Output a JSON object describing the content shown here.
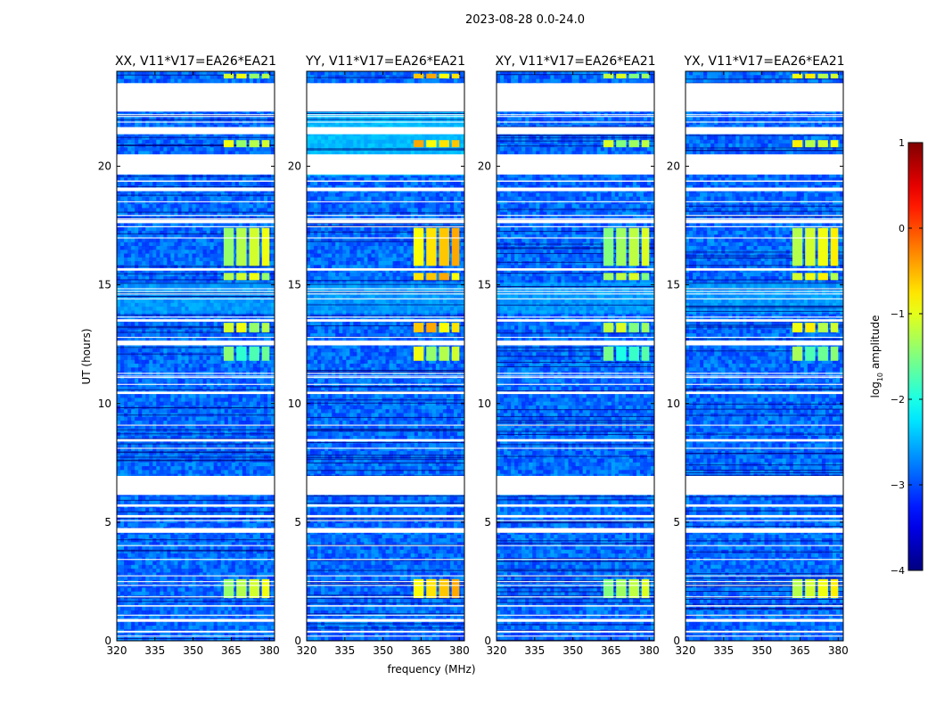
{
  "figure": {
    "suptitle": "2023-08-28 0.0-24.0",
    "ylabel": "UT (hours)",
    "xlabel": "frequency (MHz)"
  },
  "chart_data": {
    "type": "heatmap",
    "title": "2023-08-28 0.0-24.0",
    "xlabel": "frequency (MHz)",
    "ylabel": "UT (hours)",
    "xlim": [
      320,
      382
    ],
    "ylim": [
      0,
      24
    ],
    "x_ticks": [
      320,
      335,
      350,
      365,
      380
    ],
    "y_ticks": [
      0,
      5,
      10,
      15,
      20
    ],
    "panels": [
      {
        "title": "XX, V11*V17=EA26*EA21",
        "pol": "XX"
      },
      {
        "title": "YY, V11*V17=EA26*EA21",
        "pol": "YY"
      },
      {
        "title": "XY, V11*V17=EA26*EA21",
        "pol": "XY"
      },
      {
        "title": "YX, V11*V17=EA26*EA21",
        "pol": "YX"
      }
    ],
    "flagged_ut_ranges": [
      [
        0.8,
        0.92
      ],
      [
        0.35,
        0.42
      ],
      [
        1.45,
        1.5
      ],
      [
        4.55,
        4.75
      ],
      [
        5.2,
        5.3
      ],
      [
        5.65,
        5.75
      ],
      [
        6.15,
        6.95
      ],
      [
        8.4,
        8.5
      ],
      [
        10.4,
        10.5
      ],
      [
        12.45,
        12.65
      ],
      [
        13.45,
        13.55
      ],
      [
        15.6,
        15.7
      ],
      [
        17.6,
        17.75
      ],
      [
        18.95,
        19.1
      ],
      [
        19.65,
        20.5
      ],
      [
        21.35,
        21.65
      ],
      [
        22.3,
        23.5
      ]
    ],
    "rfi_frequency_bands_mhz": [
      [
        362,
        366
      ],
      [
        367,
        371
      ],
      [
        372,
        376
      ],
      [
        377,
        380
      ]
    ],
    "rfi_ut_ranges": [
      [
        1.8,
        2.6
      ],
      [
        11.8,
        12.4
      ],
      [
        13.0,
        13.4
      ],
      [
        15.2,
        15.5
      ],
      [
        15.8,
        17.4
      ],
      [
        20.8,
        21.1
      ],
      [
        23.7,
        23.9
      ]
    ],
    "colorbar": {
      "label": "log10 amplitude",
      "label_main": "log",
      "label_sub": "10",
      "label_rest": " amplitude",
      "min": -4,
      "max": 1,
      "ticks": [
        1,
        0,
        -1,
        -2,
        -3,
        -4
      ],
      "colormap": "jet"
    }
  }
}
